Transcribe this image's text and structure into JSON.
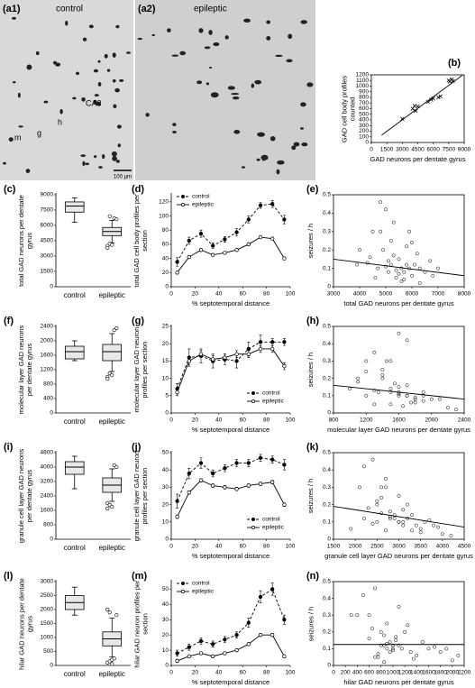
{
  "images": [
    {
      "label": "(a1)",
      "caption": "control",
      "annotations": [
        "m",
        "g",
        "h",
        "CA3"
      ],
      "scale_bar": "100 µm"
    },
    {
      "label": "(a2)",
      "caption": "epileptic"
    }
  ],
  "chart_data": [
    {
      "label": "(b)",
      "type": "scatter",
      "marker": "x",
      "x_label": "GAD neurons per dentate gyrus",
      "y_label": "GAD cell body profiles counted",
      "x": [
        3000,
        4000,
        4200,
        4300,
        4500,
        5500,
        5800,
        6000,
        6500,
        6700,
        7500,
        7600,
        7800,
        7900
      ],
      "values": [
        420,
        600,
        650,
        560,
        640,
        720,
        760,
        780,
        800,
        820,
        1100,
        1080,
        1120,
        1090
      ],
      "xlim": [
        0,
        9000
      ],
      "xticks": [
        0,
        1500,
        3000,
        4500,
        6000,
        7500,
        9000
      ],
      "ylim": [
        0,
        1200
      ],
      "yticks": [
        0,
        100,
        200,
        300,
        400,
        500,
        600,
        700,
        800,
        900,
        1000,
        1100,
        1200
      ],
      "trend": {
        "x": [
          1000,
          8800
        ],
        "y": [
          130,
          1190
        ]
      }
    },
    {
      "label": "(c)",
      "type": "box",
      "y_label": "total GAD neurons per dentate gyrus",
      "categories": [
        "control",
        "epileptic"
      ],
      "boxes": [
        {
          "min": 6300,
          "q1": 7300,
          "median": 7900,
          "q3": 8300,
          "max": 8700
        },
        {
          "min": 4300,
          "q1": 5000,
          "median": 5400,
          "q3": 5800,
          "max": 6500,
          "outliers": [
            4000,
            4200,
            4100,
            6700,
            6600,
            3800,
            6900
          ]
        }
      ],
      "ylim": [
        0,
        9000
      ],
      "yticks": [
        0,
        1500,
        3000,
        4500,
        6000,
        7500,
        9000
      ]
    },
    {
      "label": "(d)",
      "type": "line",
      "x_label": "% septotemporal distance",
      "y_label": "total GAD cell body profiles per section",
      "x": [
        5,
        15,
        25,
        35,
        45,
        55,
        65,
        75,
        85,
        95
      ],
      "series": [
        {
          "name": "control",
          "color": "#000000",
          "dashed": true,
          "values": [
            35,
            65,
            75,
            58,
            67,
            77,
            95,
            115,
            117,
            95
          ],
          "errors": [
            6,
            5,
            5,
            4,
            4,
            5,
            5,
            4,
            5,
            6
          ]
        },
        {
          "name": "epileptic",
          "color": "#000000",
          "values": [
            20,
            42,
            52,
            45,
            48,
            52,
            60,
            70,
            68,
            40
          ],
          "errors": [
            2,
            2,
            2,
            2,
            2,
            2,
            2,
            2,
            2,
            2
          ]
        }
      ],
      "xlim": [
        0,
        100
      ],
      "xticks": [
        0,
        20,
        40,
        60,
        80,
        100
      ],
      "ylim": [
        0,
        130
      ],
      "yticks": [
        0,
        20,
        40,
        60,
        80,
        100,
        120
      ],
      "legend": "upper left"
    },
    {
      "label": "(e)",
      "type": "scatter",
      "marker": "o",
      "x_label": "total GAD neurons per dentate gyrus",
      "y_label": "seizures / h",
      "x": [
        4000,
        4300,
        4500,
        4700,
        4800,
        4900,
        5000,
        5100,
        5200,
        5300,
        5400,
        5500,
        5600,
        5700,
        5800,
        5900,
        6000,
        6100,
        6200,
        6300,
        6500,
        6700,
        7000,
        4600,
        5000,
        5200,
        5400,
        5600,
        5800,
        6000,
        4400,
        5100,
        5500,
        5900,
        6300,
        3900,
        4800,
        5300,
        5700,
        6800
      ],
      "values": [
        0.2,
        0.13,
        0.3,
        0.1,
        0.46,
        0.2,
        0.42,
        0.08,
        0.12,
        0.35,
        0.05,
        0.15,
        0.1,
        0.08,
        0.22,
        0.3,
        0.06,
        0.12,
        0.18,
        0.1,
        0.08,
        0.14,
        0.1,
        0.05,
        0.11,
        0.25,
        0.09,
        0.03,
        0.12,
        0.24,
        0.16,
        0.14,
        0.07,
        0.1,
        0.02,
        0.12,
        0.3,
        0.17,
        0.04,
        0.06
      ],
      "xlim": [
        3000,
        8000
      ],
      "xticks": [
        3000,
        4000,
        5000,
        6000,
        7000,
        8000
      ],
      "ylim": [
        0,
        0.5
      ],
      "yticks": [
        0,
        0.1,
        0.2,
        0.3,
        0.4,
        0.5
      ],
      "trend": {
        "x": [
          3000,
          8000
        ],
        "y": [
          0.15,
          0.06
        ]
      }
    },
    {
      "label": "(f)",
      "type": "box",
      "y_label": "molecular layer GAD neurons per dentate gyrus",
      "categories": [
        "control",
        "epileptic"
      ],
      "boxes": [
        {
          "min": 1450,
          "q1": 1500,
          "median": 1700,
          "q3": 1850,
          "max": 2000
        },
        {
          "min": 1150,
          "q1": 1450,
          "median": 1700,
          "q3": 1900,
          "max": 2200,
          "outliers": [
            1000,
            1100,
            1050,
            2300,
            2350,
            950
          ]
        }
      ],
      "ylim": [
        0,
        2400
      ],
      "yticks": [
        0,
        400,
        800,
        1200,
        1600,
        2000,
        2400
      ]
    },
    {
      "label": "(g)",
      "type": "line",
      "x_label": "% septotemporal distance",
      "y_label": "molecular layer GAD neuron profiles per section",
      "x": [
        5,
        15,
        25,
        35,
        45,
        55,
        65,
        75,
        85,
        95
      ],
      "series": [
        {
          "name": "control",
          "color": "#000000",
          "dashed": true,
          "values": [
            7,
            16,
            16.5,
            15,
            15.5,
            15,
            18.5,
            20.5,
            20.5,
            20.5
          ],
          "errors": [
            1.5,
            2.5,
            2,
            2,
            1.5,
            2,
            2,
            2,
            1,
            1
          ]
        },
        {
          "name": "epileptic",
          "color": "#000000",
          "values": [
            6,
            15,
            17,
            15.5,
            16,
            17,
            17,
            18.5,
            18.5,
            13.5
          ],
          "errors": [
            1,
            1,
            1,
            1,
            1,
            1,
            1,
            1,
            1,
            1
          ]
        }
      ],
      "xlim": [
        0,
        100
      ],
      "xticks": [
        0,
        20,
        40,
        60,
        80,
        100
      ],
      "ylim": [
        0,
        25
      ],
      "yticks": [
        0,
        5,
        10,
        15,
        20,
        25
      ],
      "legend": "lower right"
    },
    {
      "label": "(h)",
      "type": "scatter",
      "marker": "o",
      "x_label": "molecular layer GAD neurons per dentate gyrus",
      "y_label": "seizures / h",
      "x": [
        1100,
        1300,
        1500,
        1200,
        1600,
        1400,
        1700,
        1800,
        1900,
        1300,
        1500,
        1600,
        1700,
        2000,
        1400,
        1200,
        1800,
        1600,
        1100,
        1900,
        2100,
        1500,
        1700,
        1300,
        1600,
        1400,
        1800,
        2200,
        1500,
        1200,
        1700,
        1000,
        1900,
        1600,
        2300,
        1350,
        1450,
        1550,
        1650,
        1750
      ],
      "values": [
        0.2,
        0.13,
        0.3,
        0.1,
        0.46,
        0.2,
        0.42,
        0.08,
        0.12,
        0.35,
        0.05,
        0.15,
        0.1,
        0.08,
        0.22,
        0.3,
        0.06,
        0.12,
        0.18,
        0.1,
        0.08,
        0.14,
        0.1,
        0.05,
        0.11,
        0.25,
        0.09,
        0.03,
        0.12,
        0.24,
        0.16,
        0.14,
        0.07,
        0.1,
        0.02,
        0.12,
        0.3,
        0.17,
        0.04,
        0.06
      ],
      "xlim": [
        800,
        2400
      ],
      "xticks": [
        800,
        1200,
        1600,
        2000,
        2400
      ],
      "ylim": [
        0,
        0.5
      ],
      "yticks": [
        0,
        0.1,
        0.2,
        0.3,
        0.4,
        0.5
      ],
      "trend": {
        "x": [
          800,
          2400
        ],
        "y": [
          0.16,
          0.08
        ]
      }
    },
    {
      "label": "(i)",
      "type": "box",
      "y_label": "granule cell layer GAD neurons per dentate gyrus",
      "categories": [
        "control",
        "epileptic"
      ],
      "boxes": [
        {
          "min": 2800,
          "q1": 3600,
          "median": 4000,
          "q3": 4300,
          "max": 4600
        },
        {
          "min": 2100,
          "q1": 2600,
          "median": 3000,
          "q3": 3400,
          "max": 3900,
          "outliers": [
            2000,
            1900,
            1800,
            4100,
            4000,
            1700
          ]
        }
      ],
      "ylim": [
        0,
        4800
      ],
      "yticks": [
        0,
        800,
        1600,
        2400,
        3200,
        4000,
        4800
      ]
    },
    {
      "label": "(j)",
      "type": "line",
      "x_label": "% septotemporal distance",
      "y_label": "granule cell layer GAD neuron profiles per section",
      "x": [
        5,
        15,
        25,
        35,
        45,
        55,
        65,
        75,
        85,
        95
      ],
      "series": [
        {
          "name": "control",
          "color": "#000000",
          "dashed": true,
          "values": [
            22,
            38,
            44,
            38,
            41,
            44,
            44,
            47,
            46,
            43
          ],
          "errors": [
            4,
            3,
            3,
            2,
            2,
            2,
            2,
            2,
            2,
            3
          ]
        },
        {
          "name": "epileptic",
          "color": "#000000",
          "values": [
            13,
            27,
            34,
            31,
            30,
            29,
            31,
            32,
            33,
            20
          ],
          "errors": [
            1,
            1,
            1,
            1,
            1,
            1,
            1,
            1,
            1,
            1
          ]
        }
      ],
      "xlim": [
        0,
        100
      ],
      "xticks": [
        0,
        20,
        40,
        60,
        80,
        100
      ],
      "ylim": [
        0,
        50
      ],
      "yticks": [
        0,
        10,
        20,
        30,
        40,
        50
      ],
      "legend": "lower right"
    },
    {
      "label": "(k)",
      "type": "scatter",
      "marker": "o",
      "x_label": "granule cell layer GAD neurons per dentate gyrus",
      "y_label": "seizures / h",
      "x": [
        2500,
        2800,
        2600,
        3000,
        2400,
        3200,
        2200,
        3100,
        2900,
        2700,
        3300,
        2600,
        3000,
        3400,
        2500,
        2100,
        3500,
        2800,
        2300,
        3600,
        3800,
        2900,
        3100,
        2700,
        3700,
        3000,
        2400,
        4000,
        3200,
        2600,
        2800,
        3300,
        3900,
        2500,
        4200,
        2200,
        2700,
        3100,
        3500,
        1900
      ],
      "values": [
        0.2,
        0.13,
        0.3,
        0.1,
        0.46,
        0.2,
        0.42,
        0.08,
        0.12,
        0.35,
        0.05,
        0.15,
        0.1,
        0.08,
        0.22,
        0.3,
        0.06,
        0.12,
        0.18,
        0.1,
        0.08,
        0.14,
        0.1,
        0.05,
        0.11,
        0.25,
        0.09,
        0.03,
        0.12,
        0.24,
        0.16,
        0.14,
        0.07,
        0.1,
        0.02,
        0.12,
        0.3,
        0.17,
        0.04,
        0.06
      ],
      "xlim": [
        1500,
        4500
      ],
      "xticks": [
        1500,
        2000,
        2500,
        3000,
        3500,
        4000,
        4500
      ],
      "ylim": [
        0,
        0.5
      ],
      "yticks": [
        0,
        0.1,
        0.2,
        0.3,
        0.4,
        0.5
      ],
      "trend": {
        "x": [
          1500,
          4500
        ],
        "y": [
          0.19,
          0.07
        ]
      }
    },
    {
      "label": "(l)",
      "type": "box",
      "y_label": "hilar GAD neurons per dentate gyrus",
      "categories": [
        "control",
        "epileptic"
      ],
      "boxes": [
        {
          "min": 1800,
          "q1": 2000,
          "median": 2250,
          "q3": 2500,
          "max": 2800
        },
        {
          "min": 300,
          "q1": 700,
          "median": 950,
          "q3": 1200,
          "max": 1700,
          "outliers": [
            100,
            150,
            200,
            250,
            1800,
            2000,
            1900,
            50
          ]
        }
      ],
      "ylim": [
        0,
        3000
      ],
      "yticks": [
        0,
        500,
        1000,
        1500,
        2000,
        2500,
        3000
      ]
    },
    {
      "label": "(m)",
      "type": "line",
      "x_label": "% septotemporal distance",
      "y_label": "hilar GAD neuron profiles per section",
      "x": [
        5,
        15,
        25,
        35,
        45,
        55,
        65,
        75,
        85,
        95
      ],
      "series": [
        {
          "name": "control",
          "color": "#000000",
          "dashed": true,
          "values": [
            8,
            12,
            16,
            14,
            17,
            20,
            28,
            45,
            50,
            30
          ],
          "errors": [
            2,
            2,
            2,
            2,
            2,
            2,
            3,
            4,
            4,
            3
          ]
        },
        {
          "name": "epileptic",
          "color": "#000000",
          "values": [
            3,
            6,
            8,
            6,
            8,
            10,
            14,
            20,
            20,
            6
          ],
          "errors": [
            1,
            1,
            1,
            1,
            1,
            1,
            1,
            1,
            1,
            1
          ]
        }
      ],
      "xlim": [
        0,
        100
      ],
      "xticks": [
        0,
        20,
        40,
        60,
        80,
        100
      ],
      "ylim": [
        0,
        55
      ],
      "yticks": [
        0,
        10,
        20,
        30,
        40,
        50
      ],
      "legend": "upper left"
    },
    {
      "label": "(n)",
      "type": "scatter",
      "marker": "o",
      "x_label": "hilar GAD neurons per dentate gyrus",
      "y_label": "seizures / h",
      "x": [
        800,
        900,
        600,
        1000,
        700,
        1200,
        500,
        950,
        850,
        1100,
        750,
        1050,
        900,
        1300,
        650,
        400,
        1400,
        1000,
        850,
        1600,
        1800,
        950,
        1150,
        700,
        1700,
        900,
        1000,
        2000,
        800,
        1250,
        600,
        1500,
        750,
        1900,
        850,
        1100,
        300,
        1050,
        1350,
        2100
      ],
      "values": [
        0.2,
        0.13,
        0.3,
        0.1,
        0.46,
        0.2,
        0.42,
        0.08,
        0.12,
        0.35,
        0.05,
        0.15,
        0.1,
        0.08,
        0.22,
        0.3,
        0.06,
        0.12,
        0.18,
        0.1,
        0.08,
        0.14,
        0.1,
        0.05,
        0.11,
        0.25,
        0.09,
        0.03,
        0.12,
        0.24,
        0.16,
        0.14,
        0.07,
        0.1,
        0.02,
        0.12,
        0.3,
        0.17,
        0.04,
        0.06
      ],
      "xlim": [
        0,
        2200
      ],
      "xticks": [
        0,
        200,
        400,
        600,
        800,
        1000,
        1200,
        1400,
        1600,
        1800,
        2000,
        2200
      ],
      "ylim": [
        0,
        0.5
      ],
      "yticks": [
        0,
        0.1,
        0.2,
        0.3,
        0.4,
        0.5
      ],
      "trend": {
        "x": [
          0,
          2200
        ],
        "y": [
          0.125,
          0.125
        ]
      }
    }
  ]
}
